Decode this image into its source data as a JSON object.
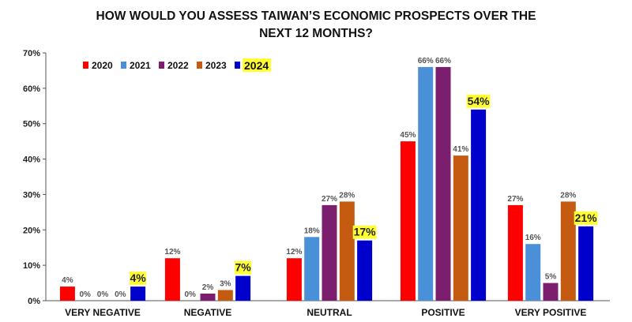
{
  "chart_data": {
    "type": "bar",
    "title_lines": [
      "HOW WOULD YOU ASSESS TAIWAN’S ECONOMIC PROSPECTS OVER THE",
      "NEXT 12 MONTHS?"
    ],
    "categories": [
      "VERY NEGATIVE",
      "NEGATIVE",
      "NEUTRAL",
      "POSITIVE",
      "VERY POSITIVE"
    ],
    "series": [
      {
        "name": "2020",
        "color": "#ff0000",
        "values": [
          4,
          12,
          12,
          45,
          27
        ],
        "labels": [
          "4%",
          "12%",
          "12%",
          "45%",
          "27%"
        ]
      },
      {
        "name": "2021",
        "color": "#4a90d9",
        "values": [
          0,
          0,
          18,
          66,
          16
        ],
        "labels": [
          "0%",
          "0%",
          "18%",
          "66%",
          "16%"
        ]
      },
      {
        "name": "2022",
        "color": "#7b1e6e",
        "values": [
          0,
          2,
          27,
          66,
          5
        ],
        "labels": [
          "0%",
          "2%",
          "27%",
          "66%",
          "5%"
        ]
      },
      {
        "name": "2023",
        "color": "#c55a11",
        "values": [
          0,
          3,
          28,
          41,
          28
        ],
        "labels": [
          "0%",
          "3%",
          "28%",
          "41%",
          "28%"
        ]
      },
      {
        "name": "2024",
        "color": "#0000cc",
        "values": [
          4,
          7,
          17,
          54,
          21
        ],
        "labels": [
          "4%",
          "7%",
          "17%",
          "54%",
          "21%"
        ],
        "highlight": true
      }
    ],
    "ylim": [
      0,
      70
    ],
    "yticks": [
      0,
      10,
      20,
      30,
      40,
      50,
      60,
      70
    ],
    "ytick_labels": [
      "0%",
      "10%",
      "20%",
      "30%",
      "40%",
      "50%",
      "60%",
      "70%"
    ],
    "xlabel": "",
    "ylabel": "",
    "grid": false,
    "legend_position": "top-left",
    "highlight_color": "#ffff33"
  }
}
